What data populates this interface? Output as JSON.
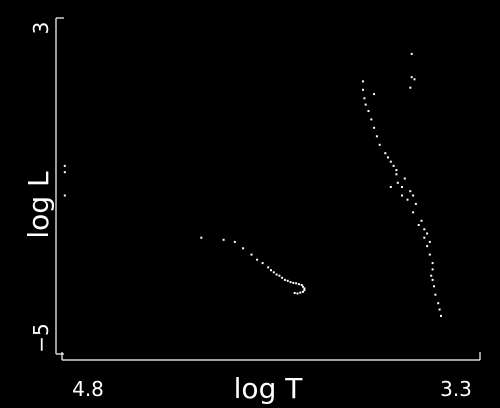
{
  "chart_data": {
    "type": "scatter",
    "title": "",
    "xlabel": "log T",
    "ylabel": "log L",
    "x_reversed": true,
    "xlim": [
      4.8,
      3.3
    ],
    "ylim": [
      -5,
      3
    ],
    "x_tick_labels": [
      "4.8",
      "3.3"
    ],
    "y_tick_labels": [
      "−5",
      "3"
    ],
    "grid": false,
    "legend": "none",
    "colors": {
      "background": "#000000",
      "foreground": "#ffffff"
    },
    "series": [
      {
        "points": [
          [
            4.79,
            -0.5
          ],
          [
            4.79,
            -0.65
          ],
          [
            4.79,
            -1.2
          ],
          [
            4.3,
            -2.2
          ],
          [
            4.22,
            -2.25
          ],
          [
            4.18,
            -2.3
          ],
          [
            4.15,
            -2.45
          ],
          [
            4.12,
            -2.6
          ],
          [
            4.1,
            -2.72
          ],
          [
            4.08,
            -2.8
          ],
          [
            4.06,
            -2.9
          ],
          [
            4.05,
            -2.97
          ],
          [
            4.04,
            -3.02
          ],
          [
            4.03,
            -3.07
          ],
          [
            4.02,
            -3.1
          ],
          [
            4.01,
            -3.15
          ],
          [
            4.0,
            -3.2
          ],
          [
            3.99,
            -3.22
          ],
          [
            3.98,
            -3.25
          ],
          [
            3.97,
            -3.27
          ],
          [
            3.96,
            -3.28
          ],
          [
            3.95,
            -3.3
          ],
          [
            3.94,
            -3.32
          ],
          [
            3.935,
            -3.36
          ],
          [
            3.93,
            -3.4
          ],
          [
            3.93,
            -3.44
          ],
          [
            3.935,
            -3.48
          ],
          [
            3.945,
            -3.5
          ],
          [
            3.955,
            -3.52
          ],
          [
            3.965,
            -3.51
          ],
          [
            3.72,
            1.5
          ],
          [
            3.72,
            1.3
          ],
          [
            3.715,
            1.1
          ],
          [
            3.71,
            0.95
          ],
          [
            3.7,
            0.8
          ],
          [
            3.69,
            0.6
          ],
          [
            3.68,
            0.4
          ],
          [
            3.67,
            0.2
          ],
          [
            3.66,
            0.0
          ],
          [
            3.64,
            -0.2
          ],
          [
            3.62,
            -0.4
          ],
          [
            3.6,
            -0.7
          ],
          [
            3.58,
            -1.0
          ],
          [
            3.56,
            -1.3
          ],
          [
            3.54,
            -1.6
          ],
          [
            3.52,
            -1.9
          ],
          [
            3.5,
            -2.2
          ],
          [
            3.49,
            -2.4
          ],
          [
            3.48,
            -2.6
          ],
          [
            3.47,
            -2.8
          ],
          [
            3.47,
            -2.95
          ],
          [
            3.475,
            -3.1
          ],
          [
            3.47,
            -3.2
          ],
          [
            3.465,
            -3.35
          ],
          [
            3.46,
            -3.55
          ],
          [
            3.45,
            -3.75
          ],
          [
            3.445,
            -3.9
          ],
          [
            3.44,
            -4.05
          ],
          [
            3.63,
            -0.3
          ],
          [
            3.61,
            -0.5
          ],
          [
            3.6,
            -0.6
          ],
          [
            3.595,
            -0.9
          ],
          [
            3.57,
            -0.8
          ],
          [
            3.55,
            -1.1
          ],
          [
            3.54,
            -1.2
          ],
          [
            3.53,
            -1.4
          ],
          [
            3.51,
            -1.8
          ],
          [
            3.5,
            -2.0
          ],
          [
            3.49,
            -2.1
          ],
          [
            3.48,
            -2.3
          ],
          [
            3.62,
            -1.0
          ],
          [
            3.58,
            -1.2
          ],
          [
            3.68,
            1.2
          ],
          [
            3.545,
            2.15
          ],
          [
            3.545,
            1.6
          ],
          [
            3.55,
            1.35
          ],
          [
            3.535,
            1.55
          ]
        ]
      }
    ]
  }
}
